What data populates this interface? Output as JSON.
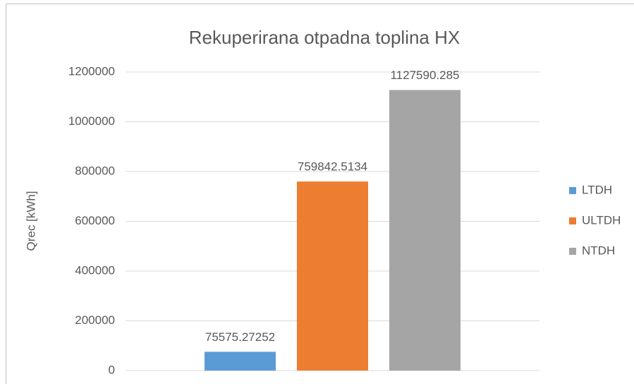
{
  "chart_data": {
    "type": "bar",
    "title": "Rekuperirana otpadna toplina HX",
    "y_label": "Qrec [kWh]",
    "series": [
      {
        "name": "LTDH",
        "color": "#5b9bd5",
        "values": [
          75575.27252
        ]
      },
      {
        "name": "ULTDH",
        "color": "#ed7d31",
        "values": [
          759842.5134
        ]
      },
      {
        "name": "NTDH",
        "color": "#a5a5a5",
        "values": [
          1127590.285
        ]
      }
    ],
    "ylim": [
      0,
      1200000
    ],
    "yticks": [
      0,
      200000,
      400000,
      600000,
      800000,
      1000000,
      1200000
    ],
    "grid": true,
    "legend": "right"
  }
}
